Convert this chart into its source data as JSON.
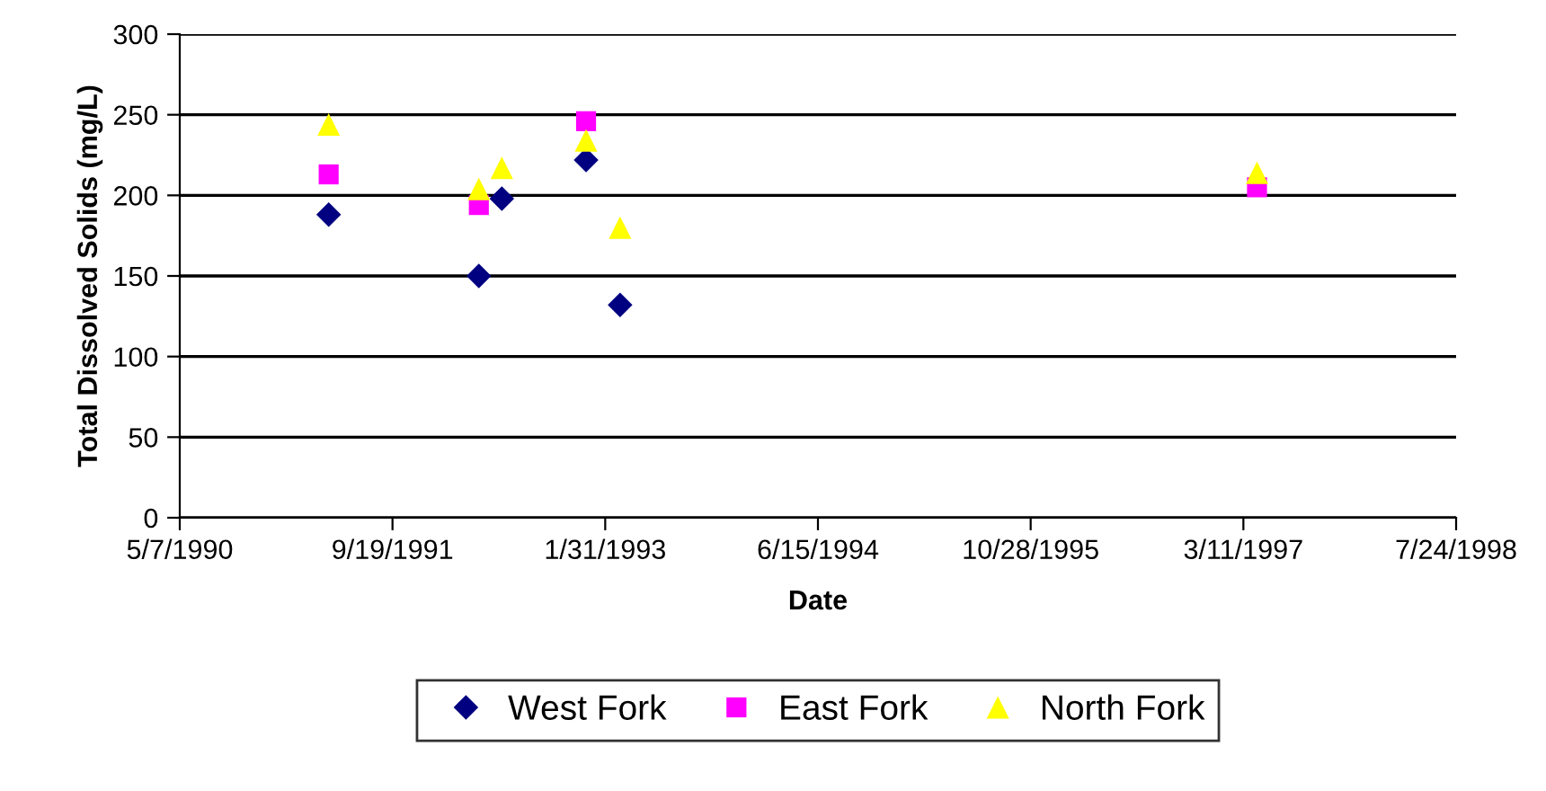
{
  "chart_data": {
    "type": "scatter",
    "xlabel": "Date",
    "ylabel": "Total Dissolved Solids (mg/L)",
    "series": [
      {
        "name": "West Fork",
        "color": "#000080",
        "marker": "diamond",
        "x": [
          "1991-04-22",
          "1992-04-09",
          "1992-06-02",
          "1992-12-17",
          "1993-03-07"
        ],
        "values": [
          188,
          150,
          198,
          222,
          132
        ]
      },
      {
        "name": "East Fork",
        "color": "#ff00ff",
        "marker": "square",
        "x": [
          "1991-04-22",
          "1992-04-09",
          "1992-12-17",
          "1997-04-12"
        ],
        "values": [
          213,
          194,
          246,
          205
        ]
      },
      {
        "name": "North Fork",
        "color": "#ffff00",
        "marker": "triangle",
        "x": [
          "1991-04-22",
          "1992-04-09",
          "1992-06-02",
          "1992-12-17",
          "1993-03-07",
          "1997-04-12"
        ],
        "values": [
          244,
          204,
          217,
          234,
          180,
          214
        ]
      }
    ],
    "xlim": [
      "1990-05-07",
      "1998-07-24"
    ],
    "xticks": [
      {
        "value": "1990-05-07",
        "label": "5/7/1990"
      },
      {
        "value": "1991-09-19",
        "label": "9/19/1991"
      },
      {
        "value": "1993-01-31",
        "label": "1/31/1993"
      },
      {
        "value": "1994-06-15",
        "label": "6/15/1994"
      },
      {
        "value": "1995-10-28",
        "label": "10/28/1995"
      },
      {
        "value": "1997-03-11",
        "label": "3/11/1997"
      },
      {
        "value": "1998-07-24",
        "label": "7/24/1998"
      }
    ],
    "ylim": [
      0,
      300
    ],
    "yticks": [
      0,
      50,
      100,
      150,
      200,
      250,
      300
    ],
    "grid": "y",
    "legend": "bottom"
  }
}
